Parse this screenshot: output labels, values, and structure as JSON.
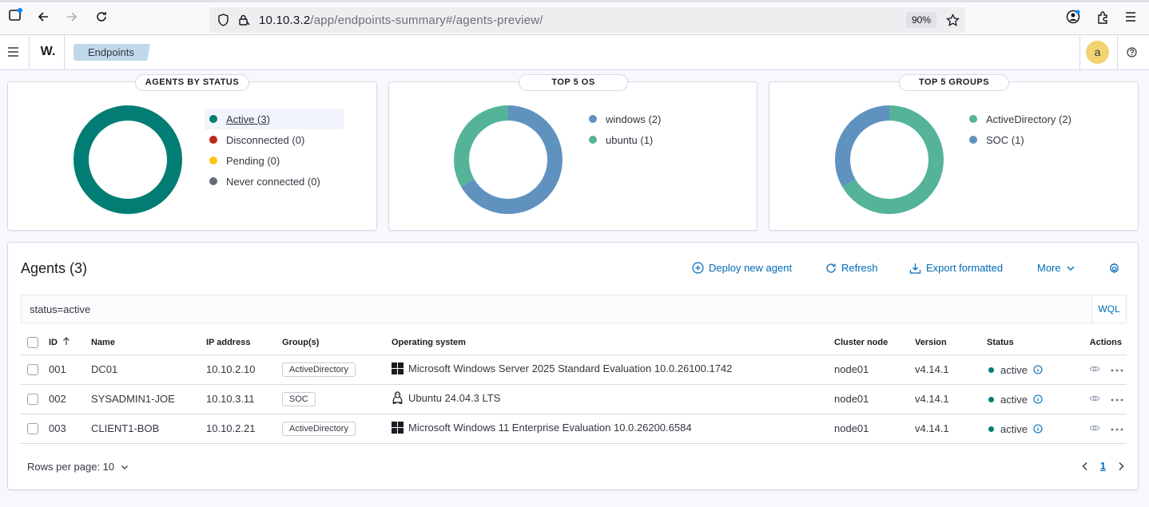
{
  "browser": {
    "url_host": "10.10.3.2",
    "url_path": "/app/endpoints-summary#/agents-preview/",
    "zoom": "90%"
  },
  "header": {
    "logo": "W.",
    "breadcrumb": "Endpoints",
    "avatar_initial": "a"
  },
  "panels": {
    "status": {
      "title": "AGENTS BY STATUS",
      "legend": [
        {
          "label": "Active (3)",
          "color": "#017d73"
        },
        {
          "label": "Disconnected (0)",
          "color": "#bd271e"
        },
        {
          "label": "Pending (0)",
          "color": "#fec514"
        },
        {
          "label": "Never connected (0)",
          "color": "#646a77"
        }
      ]
    },
    "os": {
      "title": "TOP 5 OS",
      "legend": [
        {
          "label": "windows (2)",
          "color": "#6092c0"
        },
        {
          "label": "ubuntu (1)",
          "color": "#54b399"
        }
      ]
    },
    "groups": {
      "title": "TOP 5 GROUPS",
      "legend": [
        {
          "label": "ActiveDirectory (2)",
          "color": "#54b399"
        },
        {
          "label": "SOC (1)",
          "color": "#6092c0"
        }
      ]
    }
  },
  "agents": {
    "title": "Agents (3)",
    "deploy_label": "Deploy new agent",
    "refresh_label": "Refresh",
    "export_label": "Export formatted",
    "more_label": "More",
    "search_value": "status=active",
    "wql_label": "WQL",
    "columns": {
      "id": "ID",
      "name": "Name",
      "ip": "IP address",
      "groups": "Group(s)",
      "os": "Operating system",
      "node": "Cluster node",
      "version": "Version",
      "status": "Status",
      "actions": "Actions"
    },
    "rows": [
      {
        "id": "001",
        "name": "DC01",
        "ip": "10.10.2.10",
        "group": "ActiveDirectory",
        "os_icon": "windows-icon",
        "os": "Microsoft Windows Server 2025 Standard Evaluation 10.0.26100.1742",
        "node": "node01",
        "version": "v4.14.1",
        "status": "active"
      },
      {
        "id": "002",
        "name": "SYSADMIN1-JOE",
        "ip": "10.10.3.11",
        "group": "SOC",
        "os_icon": "linux-icon",
        "os": "Ubuntu 24.04.3 LTS",
        "node": "node01",
        "version": "v4.14.1",
        "status": "active"
      },
      {
        "id": "003",
        "name": "CLIENT1-BOB",
        "ip": "10.10.2.21",
        "group": "ActiveDirectory",
        "os_icon": "windows-icon",
        "os": "Microsoft Windows 11 Enterprise Evaluation 10.0.26200.6584",
        "node": "node01",
        "version": "v4.14.1",
        "status": "active"
      }
    ],
    "rows_per_page": "Rows per page: 10",
    "current_page": "1"
  }
}
